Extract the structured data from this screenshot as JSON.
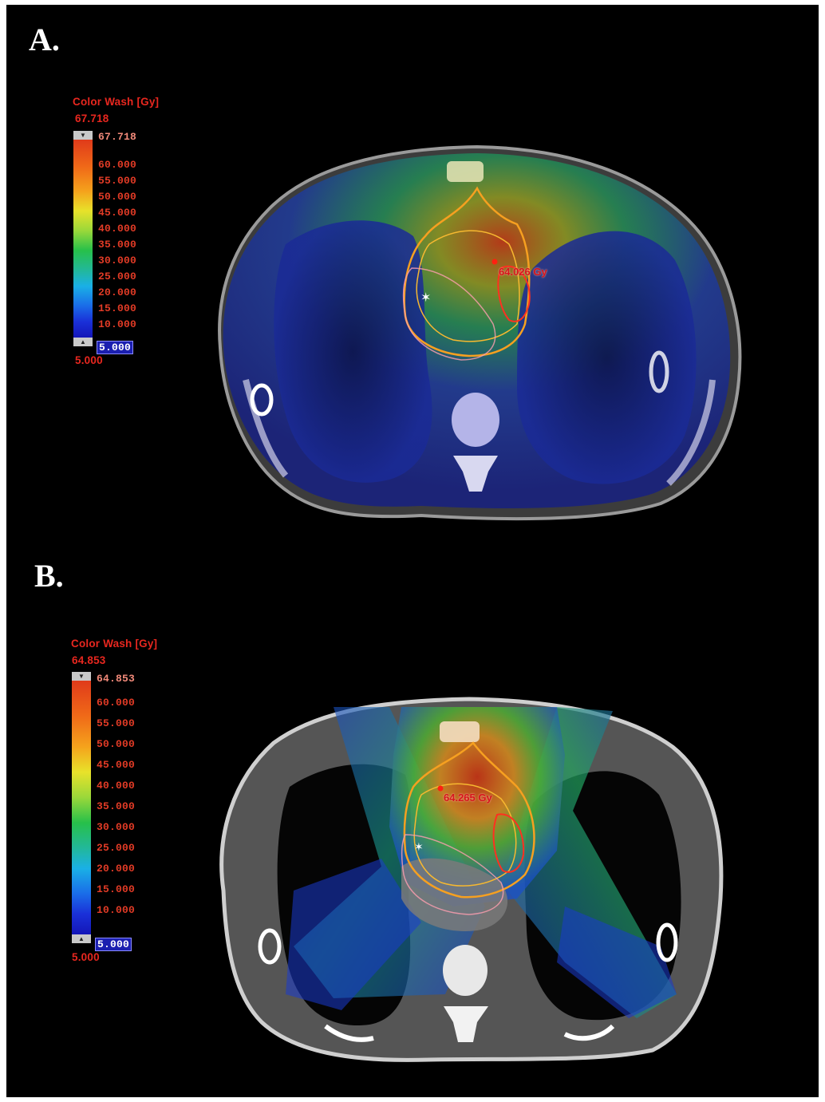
{
  "panels": [
    {
      "label": "A.",
      "scale": {
        "title": "Color Wash [Gy]",
        "max_header": "67.718",
        "ticks": [
          "67.718",
          "60.000",
          "55.000",
          "50.000",
          "45.000",
          "40.000",
          "35.000",
          "30.000",
          "25.000",
          "20.000",
          "15.000",
          "10.000",
          "5.000"
        ],
        "min_footer": "5.000"
      },
      "dose_point": "64.026 Gy"
    },
    {
      "label": "B.",
      "scale": {
        "title": "Color Wash [Gy]",
        "max_header": "64.853",
        "ticks": [
          "64.853",
          "60.000",
          "55.000",
          "50.000",
          "45.000",
          "40.000",
          "35.000",
          "30.000",
          "25.000",
          "20.000",
          "15.000",
          "10.000",
          "5.000"
        ],
        "min_footer": "5.000"
      },
      "dose_point": "64.265 Gy"
    }
  ],
  "colors": {
    "background": "#000000",
    "scale_text": "#e8271f",
    "dose_high": "#e03a1a",
    "dose_low": "#1416b8"
  }
}
